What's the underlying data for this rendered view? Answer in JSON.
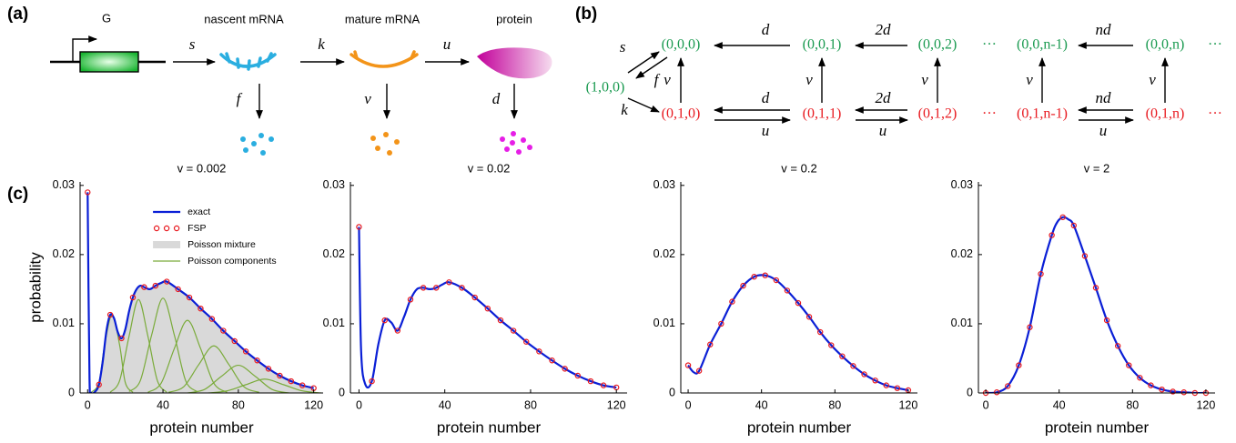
{
  "panel_labels": [
    "(a)",
    "(b)",
    "(c)"
  ],
  "diagram_a": {
    "gene": "G",
    "species": [
      "nascent mRNA",
      "mature mRNA",
      "protein"
    ],
    "rates": [
      "s",
      "k",
      "u",
      "f",
      "v",
      "d"
    ]
  },
  "diagram_b": {
    "nodes": [
      "(1,0,0)",
      "(0,0,0)",
      "(0,0,1)",
      "(0,0,2)",
      "(0,0,n-1)",
      "(0,0,n)",
      "(0,1,0)",
      "(0,1,1)",
      "(0,1,2)",
      "(0,1,n-1)",
      "(0,1,n)"
    ],
    "ellipses": [
      "···",
      "···",
      "···",
      "···"
    ],
    "rates": [
      "s",
      "f",
      "k",
      "d",
      "2d",
      "nd",
      "v",
      "v",
      "v",
      "v",
      "v",
      "d",
      "2d",
      "nd",
      "u",
      "u",
      "u"
    ]
  },
  "chart_data": [
    {
      "type": "line",
      "title": "v = 0.002",
      "xlabel": "protein number",
      "ylabel": "probability",
      "xlim": [
        -4,
        125
      ],
      "ylim": [
        0,
        0.0305
      ],
      "xticks": [
        0,
        40,
        80,
        120
      ],
      "yticks": [
        0,
        0.01,
        0.02,
        0.03
      ],
      "legend": "upper center",
      "series": [
        {
          "name": "Poisson mixture",
          "style": "area",
          "color": "#d9d9d9",
          "x": [
            2,
            4,
            6,
            8,
            10,
            12,
            14,
            16,
            18,
            20,
            22,
            24,
            26,
            28,
            30,
            33,
            36,
            39,
            42,
            48,
            54,
            60,
            66,
            72,
            78,
            84,
            90,
            96,
            102,
            108,
            114,
            120
          ],
          "values": [
            0,
            0.0002,
            0.0012,
            0.0045,
            0.009,
            0.0113,
            0.0108,
            0.0088,
            0.0079,
            0.0092,
            0.0118,
            0.0138,
            0.015,
            0.0155,
            0.0153,
            0.015,
            0.0155,
            0.0159,
            0.0161,
            0.015,
            0.0138,
            0.0122,
            0.0107,
            0.009,
            0.0075,
            0.006,
            0.0047,
            0.0035,
            0.0025,
            0.0017,
            0.0011,
            0.0007
          ]
        },
        {
          "name": "Poisson components",
          "style": "components",
          "color": "#7aab3a",
          "components": [
            {
              "x": [
                2,
                6,
                9,
                13,
                17,
                20,
                24
              ],
              "values": [
                0.0001,
                0.0015,
                0.0069,
                0.0113,
                0.0069,
                0.0015,
                0.0001
              ]
            },
            {
              "x": [
                12,
                17,
                22,
                27,
                32,
                37,
                42
              ],
              "values": [
                0.0001,
                0.0018,
                0.0082,
                0.0135,
                0.0082,
                0.0018,
                0.0001
              ]
            },
            {
              "x": [
                22,
                28,
                34,
                40,
                46,
                52,
                58
              ],
              "values": [
                0.0002,
                0.0018,
                0.0084,
                0.0137,
                0.0084,
                0.0018,
                0.0002
              ]
            },
            {
              "x": [
                32,
                39,
                46,
                53,
                60,
                67,
                74
              ],
              "values": [
                0.0001,
                0.0014,
                0.0064,
                0.0105,
                0.0064,
                0.0014,
                0.0001
              ]
            },
            {
              "x": [
                43,
                51,
                59,
                67,
                75,
                83,
                91
              ],
              "values": [
                0.0001,
                0.0009,
                0.0041,
                0.0068,
                0.0041,
                0.0009,
                0.0001
              ]
            },
            {
              "x": [
                53,
                62,
                71,
                80,
                89,
                98,
                107
              ],
              "values": [
                0,
                0.0005,
                0.0024,
                0.004,
                0.0024,
                0.0005,
                0
              ]
            },
            {
              "x": [
                64,
                74,
                84,
                94,
                104,
                114,
                124
              ],
              "values": [
                0,
                0.0003,
                0.0012,
                0.002,
                0.0012,
                0.0003,
                0
              ]
            }
          ]
        },
        {
          "name": "exact",
          "style": "line",
          "color": "#0a1fd6",
          "x": [
            0,
            1,
            2,
            4,
            6,
            8,
            10,
            12,
            14,
            16,
            18,
            20,
            22,
            24,
            26,
            28,
            30,
            33,
            36,
            39,
            42,
            48,
            54,
            60,
            66,
            72,
            78,
            84,
            90,
            96,
            102,
            108,
            114,
            120
          ],
          "values": [
            0.029,
            0.002,
            0,
            0.0002,
            0.0012,
            0.0045,
            0.009,
            0.0113,
            0.0108,
            0.0088,
            0.0079,
            0.0092,
            0.0118,
            0.0138,
            0.015,
            0.0155,
            0.0153,
            0.015,
            0.0155,
            0.0159,
            0.0161,
            0.015,
            0.0138,
            0.0122,
            0.0107,
            0.009,
            0.0075,
            0.006,
            0.0047,
            0.0035,
            0.0025,
            0.0017,
            0.0011,
            0.0007
          ]
        },
        {
          "name": "FSP",
          "style": "markers",
          "color": "#e8191f",
          "x": [
            0,
            6,
            12,
            18,
            24,
            30,
            36,
            42,
            48,
            54,
            60,
            66,
            72,
            78,
            84,
            90,
            96,
            102,
            108,
            114,
            120
          ],
          "values": [
            0.029,
            0.0012,
            0.0113,
            0.0079,
            0.0138,
            0.0153,
            0.0155,
            0.0161,
            0.015,
            0.0138,
            0.0122,
            0.0107,
            0.009,
            0.0075,
            0.006,
            0.0047,
            0.0035,
            0.0025,
            0.0017,
            0.0011,
            0.0007
          ]
        }
      ]
    },
    {
      "type": "line",
      "title": "v = 0.02",
      "xlabel": "protein number",
      "xlim": [
        -4,
        125
      ],
      "ylim": [
        0,
        0.0305
      ],
      "xticks": [
        0,
        40,
        80,
        120
      ],
      "yticks": [
        0,
        0.01,
        0.02,
        0.03
      ],
      "series": [
        {
          "style": "line",
          "color": "#0a1fd6",
          "x": [
            0,
            1,
            3,
            6,
            9,
            12,
            15,
            18,
            21,
            24,
            27,
            30,
            33,
            36,
            39,
            42,
            48,
            54,
            60,
            66,
            72,
            78,
            84,
            90,
            96,
            102,
            108,
            114,
            120
          ],
          "values": [
            0.024,
            0.006,
            0.0012,
            0.0017,
            0.007,
            0.0105,
            0.0102,
            0.009,
            0.011,
            0.0135,
            0.015,
            0.0152,
            0.015,
            0.0152,
            0.0157,
            0.016,
            0.0152,
            0.0138,
            0.0122,
            0.0105,
            0.009,
            0.0074,
            0.006,
            0.0047,
            0.0035,
            0.0025,
            0.0017,
            0.0011,
            0.0008
          ]
        },
        {
          "style": "markers",
          "color": "#e8191f",
          "x": [
            0,
            6,
            12,
            18,
            24,
            30,
            36,
            42,
            48,
            54,
            60,
            66,
            72,
            78,
            84,
            90,
            96,
            102,
            108,
            114,
            120
          ],
          "values": [
            0.024,
            0.0017,
            0.0105,
            0.009,
            0.0135,
            0.0152,
            0.0152,
            0.016,
            0.0152,
            0.0138,
            0.0122,
            0.0105,
            0.009,
            0.0074,
            0.006,
            0.0047,
            0.0035,
            0.0025,
            0.0017,
            0.0011,
            0.0008
          ]
        }
      ]
    },
    {
      "type": "line",
      "title": "v = 0.2",
      "xlabel": "protein number",
      "xlim": [
        -4,
        125
      ],
      "ylim": [
        0,
        0.0305
      ],
      "xticks": [
        0,
        40,
        80,
        120
      ],
      "yticks": [
        0,
        0.01,
        0.02,
        0.03
      ],
      "series": [
        {
          "style": "line",
          "color": "#0a1fd6",
          "x": [
            0,
            3,
            6,
            12,
            18,
            24,
            30,
            36,
            42,
            48,
            54,
            60,
            66,
            72,
            78,
            84,
            90,
            96,
            102,
            108,
            114,
            120
          ],
          "values": [
            0.004,
            0.003,
            0.0032,
            0.007,
            0.01,
            0.0132,
            0.0155,
            0.0168,
            0.017,
            0.0163,
            0.0148,
            0.013,
            0.011,
            0.0088,
            0.0069,
            0.0053,
            0.0039,
            0.0027,
            0.0018,
            0.0011,
            0.0007,
            0.0004
          ]
        },
        {
          "style": "markers",
          "color": "#e8191f",
          "x": [
            0,
            6,
            12,
            18,
            24,
            30,
            36,
            42,
            48,
            54,
            60,
            66,
            72,
            78,
            84,
            90,
            96,
            102,
            108,
            114,
            120
          ],
          "values": [
            0.004,
            0.0032,
            0.007,
            0.01,
            0.0132,
            0.0155,
            0.0168,
            0.017,
            0.0163,
            0.0148,
            0.013,
            0.011,
            0.0088,
            0.0069,
            0.0053,
            0.0039,
            0.0027,
            0.0018,
            0.0011,
            0.0007,
            0.0004
          ]
        }
      ]
    },
    {
      "type": "line",
      "title": "v = 2",
      "xlabel": "protein number",
      "xlim": [
        -4,
        125
      ],
      "ylim": [
        0,
        0.0305
      ],
      "xticks": [
        0,
        40,
        80,
        120
      ],
      "yticks": [
        0,
        0.01,
        0.02,
        0.03
      ],
      "series": [
        {
          "style": "line",
          "color": "#0a1fd6",
          "x": [
            0,
            6,
            12,
            18,
            24,
            30,
            36,
            39,
            42,
            45,
            48,
            54,
            60,
            66,
            72,
            78,
            84,
            90,
            96,
            102,
            108,
            114,
            120
          ],
          "values": [
            0,
            0.0001,
            0.001,
            0.004,
            0.0095,
            0.0172,
            0.0228,
            0.0247,
            0.0254,
            0.0251,
            0.0242,
            0.0198,
            0.0152,
            0.0105,
            0.0068,
            0.004,
            0.0022,
            0.0011,
            0.0005,
            0.0002,
            0.0001,
            0,
            0
          ]
        },
        {
          "style": "markers",
          "color": "#e8191f",
          "x": [
            0,
            6,
            12,
            18,
            24,
            30,
            36,
            42,
            48,
            54,
            60,
            66,
            72,
            78,
            84,
            90,
            96,
            102,
            108,
            114,
            120
          ],
          "values": [
            0,
            0.0001,
            0.001,
            0.004,
            0.0095,
            0.0172,
            0.0228,
            0.0254,
            0.0242,
            0.0198,
            0.0152,
            0.0105,
            0.0068,
            0.004,
            0.0022,
            0.0011,
            0.0005,
            0.0002,
            0.0001,
            0,
            0
          ]
        }
      ]
    }
  ]
}
